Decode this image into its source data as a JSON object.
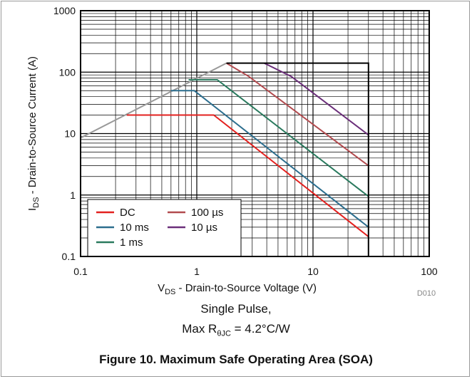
{
  "chart_data": {
    "type": "line",
    "x_scale": "log",
    "y_scale": "log",
    "xlim": [
      0.1,
      100
    ],
    "ylim": [
      0.1,
      1000
    ],
    "x_ticks": [
      "0.1",
      "1",
      "10",
      "100"
    ],
    "y_ticks": [
      "0.1",
      "1",
      "10",
      "100",
      "1000"
    ],
    "xlabel": {
      "main": "V",
      "sub": "DS",
      "rest": " - Drain-to-Source Voltage (V)"
    },
    "ylabel": {
      "main": "I",
      "sub": "DS",
      "rest": " - Drain-to-Source Current (A)"
    },
    "grid": true,
    "legend_position": "bottom-left",
    "colors": {
      "DC": "#e3211f",
      "10 ms": "#2c6e8e",
      "1 ms": "#2a7a5e",
      "100 µs": "#b24b4f",
      "10 µs": "#6b2f7a",
      "limit": "#999999",
      "boundary": "#000000"
    },
    "series": [
      {
        "name": "DC",
        "x": [
          0.25,
          1.4,
          30
        ],
        "y": [
          20,
          20,
          0.21
        ]
      },
      {
        "name": "10 ms",
        "x": [
          0.6,
          0.95,
          30
        ],
        "y": [
          50,
          50,
          0.3
        ]
      },
      {
        "name": "1 ms",
        "x": [
          0.85,
          1.5,
          30
        ],
        "y": [
          75,
          75,
          0.95
        ]
      },
      {
        "name": "100 µs",
        "x": [
          1.8,
          2.8,
          30
        ],
        "y": [
          140,
          85,
          3.0
        ]
      },
      {
        "name": "10 µs",
        "x": [
          3.8,
          6.5,
          30
        ],
        "y": [
          140,
          85,
          9.5
        ]
      }
    ],
    "limit_line": {
      "x": [
        0.1,
        1.8
      ],
      "y": [
        8.5,
        140
      ]
    },
    "boundary": {
      "x": [
        1.8,
        30,
        30
      ],
      "y": [
        140,
        140,
        0.1
      ]
    },
    "legend": [
      {
        "name": "DC",
        "col": 0,
        "row": 0
      },
      {
        "name": "10 ms",
        "col": 0,
        "row": 1
      },
      {
        "name": "1 ms",
        "col": 0,
        "row": 2
      },
      {
        "name": "100 µs",
        "col": 1,
        "row": 0
      },
      {
        "name": "10 µs",
        "col": 1,
        "row": 1
      }
    ],
    "figure_code": "D010"
  },
  "caption": {
    "line1": "Single Pulse,",
    "line2_prefix": "Max R",
    "line2_sub": "θJC",
    "line2_suffix": " = 4.2°C/W"
  },
  "figure_title": "Figure 10. Maximum Safe Operating Area (SOA)"
}
